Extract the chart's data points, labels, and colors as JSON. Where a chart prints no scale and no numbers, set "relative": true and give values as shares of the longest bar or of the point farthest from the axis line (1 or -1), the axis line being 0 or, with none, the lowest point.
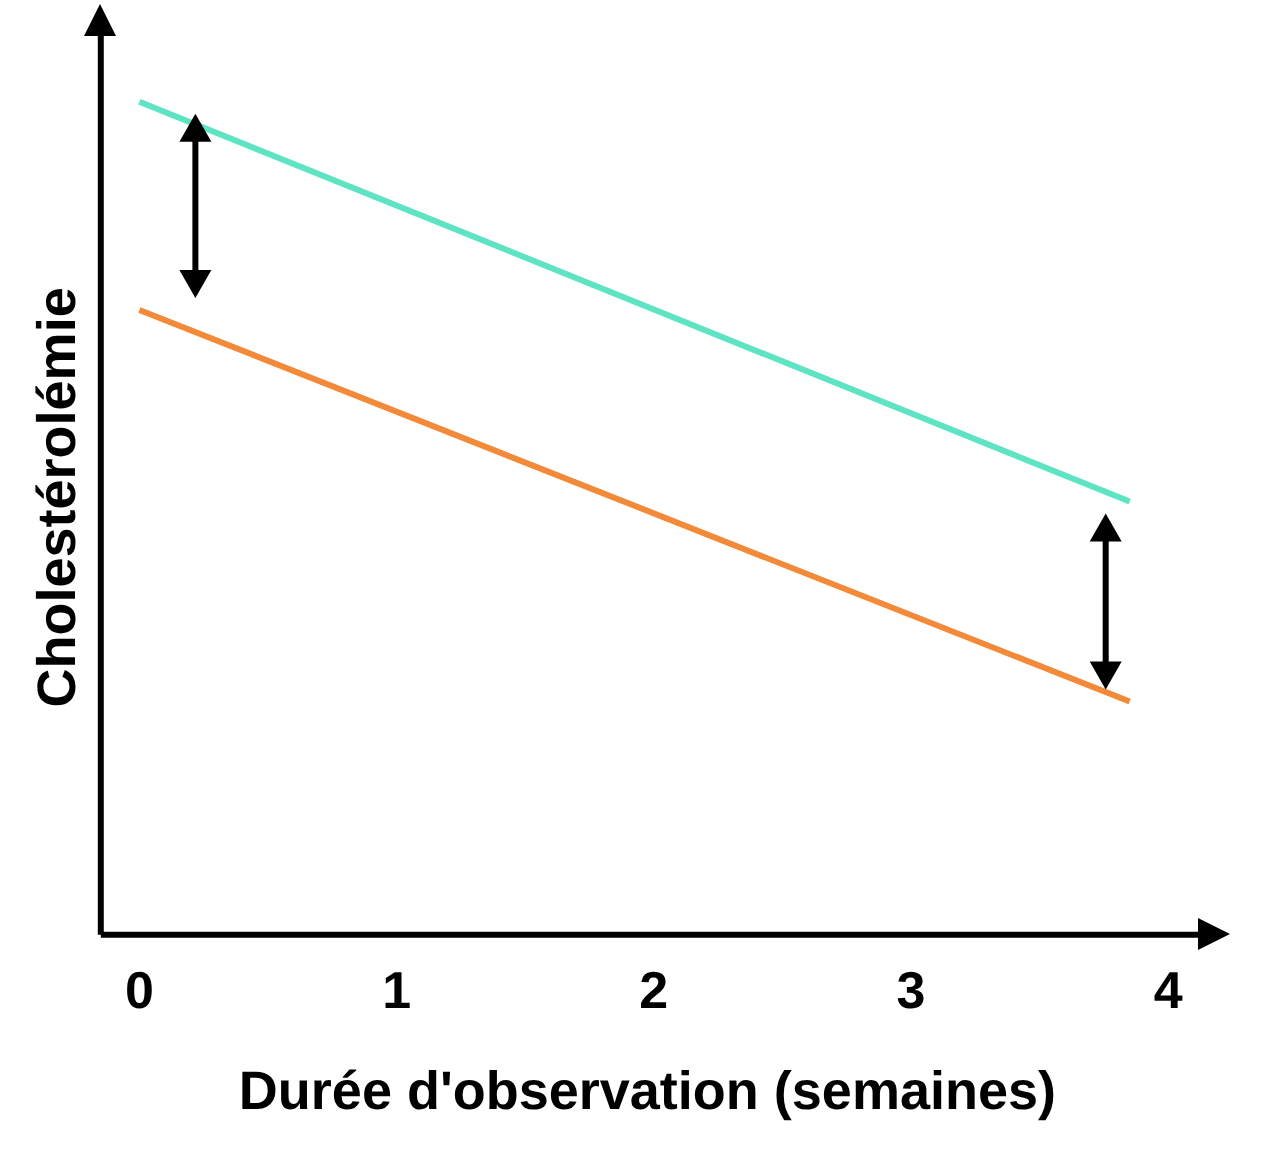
{
  "chart_data": {
    "type": "line",
    "xlabel": "Durée d'observation (semaines)",
    "ylabel": "Cholestérolémie",
    "relative": true,
    "tick_labels": "x",
    "grid": false,
    "legend": false,
    "marker": "none",
    "line_style": "solid",
    "xlim": [
      -0.15,
      4.1
    ],
    "xticks": [
      0,
      1,
      2,
      3,
      4
    ],
    "x": [
      0,
      3.85
    ],
    "series": [
      {
        "color": "#5ee3c3",
        "values": [
          1,
          0.52
        ]
      },
      {
        "color": "#f28a3a",
        "values": [
          0.75,
          0.28
        ]
      }
    ]
  }
}
